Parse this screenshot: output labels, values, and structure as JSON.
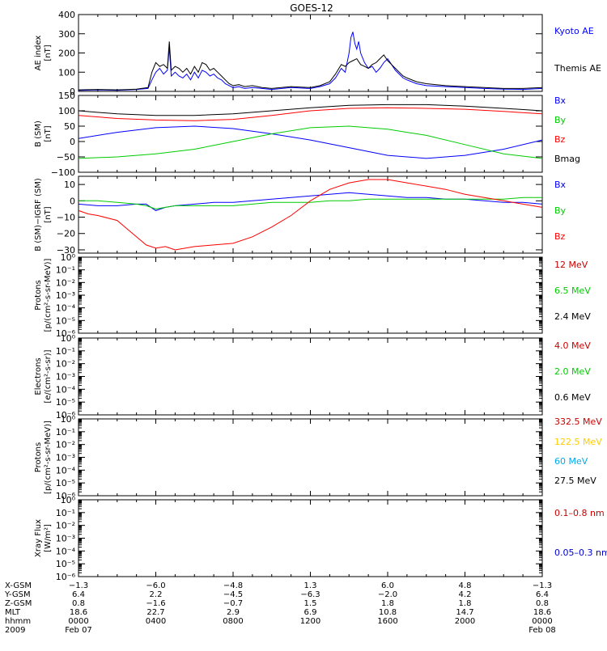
{
  "title": "GOES-12",
  "x_range_hours": [
    0,
    24
  ],
  "chart_data": [
    {
      "id": "ae",
      "type": "line",
      "ylabel": "AE index",
      "yunit": "[nT]",
      "yscale": "linear",
      "ylim": [
        0,
        400
      ],
      "yticks": [
        0,
        100,
        200,
        300,
        400
      ],
      "yticklabels": [
        "0",
        "100",
        "200",
        "300",
        "400"
      ],
      "series": [
        {
          "name": "Kyoto AE",
          "color": "#0000ff",
          "x": [
            0,
            1,
            2,
            3,
            3.6,
            3.8,
            4,
            4.2,
            4.4,
            4.6,
            4.7,
            4.8,
            5,
            5.2,
            5.4,
            5.6,
            5.8,
            6,
            6.2,
            6.4,
            6.6,
            6.8,
            7,
            7.2,
            7.4,
            7.6,
            7.8,
            8,
            8.3,
            8.6,
            9,
            9.5,
            10,
            11,
            12,
            12.5,
            13,
            13.3,
            13.6,
            13.8,
            14,
            14.1,
            14.2,
            14.3,
            14.4,
            14.5,
            14.6,
            14.8,
            15,
            15.2,
            15.4,
            15.6,
            15.8,
            16,
            16.2,
            16.4,
            16.6,
            16.8,
            17,
            17.5,
            18,
            19,
            20,
            21,
            22,
            23,
            24
          ],
          "values": [
            5,
            8,
            6,
            10,
            15,
            60,
            100,
            120,
            90,
            110,
            230,
            80,
            100,
            80,
            70,
            90,
            60,
            100,
            70,
            110,
            100,
            80,
            90,
            70,
            60,
            40,
            30,
            20,
            25,
            15,
            20,
            15,
            10,
            20,
            15,
            25,
            40,
            70,
            120,
            100,
            200,
            280,
            310,
            250,
            220,
            260,
            200,
            150,
            120,
            130,
            100,
            120,
            150,
            170,
            140,
            110,
            90,
            70,
            60,
            40,
            30,
            25,
            20,
            15,
            12,
            10,
            15
          ]
        },
        {
          "name": "Themis AE",
          "color": "#000000",
          "x": [
            0,
            1,
            2,
            3,
            3.6,
            3.8,
            4,
            4.2,
            4.4,
            4.6,
            4.7,
            4.8,
            5,
            5.2,
            5.4,
            5.6,
            5.8,
            6,
            6.2,
            6.4,
            6.6,
            6.8,
            7,
            7.2,
            7.4,
            7.6,
            7.8,
            8,
            8.3,
            8.6,
            9,
            9.5,
            10,
            11,
            12,
            12.5,
            13,
            13.3,
            13.6,
            13.8,
            14,
            14.2,
            14.4,
            14.6,
            14.8,
            15,
            15.2,
            15.4,
            15.6,
            15.8,
            16,
            16.2,
            16.4,
            16.6,
            16.8,
            17,
            17.5,
            18,
            19,
            20,
            21,
            22,
            23,
            24
          ],
          "values": [
            8,
            10,
            8,
            12,
            20,
            100,
            150,
            130,
            140,
            120,
            260,
            110,
            130,
            120,
            100,
            120,
            90,
            130,
            100,
            150,
            140,
            110,
            120,
            100,
            80,
            60,
            40,
            30,
            35,
            25,
            30,
            20,
            15,
            25,
            20,
            30,
            50,
            90,
            140,
            130,
            150,
            160,
            170,
            140,
            130,
            120,
            140,
            150,
            170,
            190,
            160,
            140,
            120,
            100,
            80,
            70,
            50,
            40,
            30,
            25,
            20,
            15,
            15,
            20
          ]
        }
      ]
    },
    {
      "id": "bsm",
      "type": "line",
      "ylabel": "B (SM)",
      "yunit": "[nT]",
      "yscale": "linear",
      "ylim": [
        -100,
        150
      ],
      "yticks": [
        -100,
        -50,
        0,
        50,
        100,
        150
      ],
      "yticklabels": [
        "−100",
        "−50",
        "0",
        "50",
        "100",
        "150"
      ],
      "series": [
        {
          "name": "Bx",
          "color": "#0000ff",
          "x": [
            0,
            2,
            4,
            6,
            8,
            10,
            12,
            14,
            16,
            18,
            20,
            22,
            24
          ],
          "values": [
            10,
            30,
            45,
            50,
            42,
            25,
            5,
            -20,
            -45,
            -55,
            -45,
            -25,
            5
          ]
        },
        {
          "name": "By",
          "color": "#00cc00",
          "x": [
            0,
            2,
            4,
            6,
            8,
            10,
            12,
            14,
            16,
            18,
            20,
            22,
            24
          ],
          "values": [
            -55,
            -50,
            -40,
            -25,
            0,
            25,
            45,
            50,
            40,
            20,
            -10,
            -40,
            -55
          ]
        },
        {
          "name": "Bz",
          "color": "#ff0000",
          "x": [
            0,
            2,
            4,
            6,
            8,
            10,
            12,
            14,
            16,
            18,
            20,
            22,
            24
          ],
          "values": [
            85,
            75,
            70,
            68,
            72,
            85,
            100,
            108,
            110,
            108,
            105,
            98,
            90
          ]
        },
        {
          "name": "Bmag",
          "color": "#000000",
          "x": [
            0,
            2,
            4,
            6,
            8,
            10,
            12,
            14,
            16,
            18,
            20,
            22,
            24
          ],
          "values": [
            100,
            90,
            85,
            85,
            90,
            100,
            110,
            118,
            120,
            120,
            115,
            108,
            100
          ]
        }
      ]
    },
    {
      "id": "bdiff",
      "type": "line",
      "ylabel": "B (SM)−IGRF (SM)",
      "yunit": "[nT]",
      "yscale": "linear",
      "ylim": [
        -32,
        15
      ],
      "yticks": [
        -30,
        -20,
        -10,
        0,
        10
      ],
      "yticklabels": [
        "−30",
        "−20",
        "−10",
        "0",
        "10"
      ],
      "series": [
        {
          "name": "Bx",
          "color": "#0000ff",
          "x": [
            0,
            1,
            2,
            3,
            3.5,
            4,
            4.5,
            5,
            6,
            7,
            8,
            9,
            10,
            11,
            12,
            13,
            14,
            15,
            16,
            17,
            18,
            19,
            20,
            21,
            22,
            23,
            24
          ],
          "values": [
            -2,
            -3,
            -3,
            -2,
            -2,
            -6,
            -4,
            -3,
            -2,
            -1,
            -1,
            0,
            1,
            2,
            3,
            4,
            5,
            4,
            3,
            2,
            2,
            1,
            1,
            0,
            -1,
            -1,
            -2
          ]
        },
        {
          "name": "By",
          "color": "#00cc00",
          "x": [
            0,
            1,
            2,
            3,
            3.5,
            4,
            4.5,
            5,
            6,
            7,
            8,
            9,
            10,
            11,
            12,
            13,
            14,
            15,
            16,
            17,
            18,
            19,
            20,
            21,
            22,
            23,
            24
          ],
          "values": [
            0,
            0,
            -1,
            -2,
            -3,
            -5,
            -4,
            -3,
            -3,
            -3,
            -3,
            -2,
            -1,
            -1,
            -1,
            0,
            0,
            1,
            1,
            1,
            1,
            1,
            1,
            1,
            1,
            2,
            2
          ]
        },
        {
          "name": "Bz",
          "color": "#ff0000",
          "x": [
            0,
            0.5,
            1,
            2,
            2.5,
            3,
            3.5,
            4,
            4.5,
            5,
            6,
            7,
            8,
            9,
            10,
            11,
            12,
            13,
            14,
            15,
            16,
            17,
            18,
            19,
            20,
            21,
            22,
            23,
            24
          ],
          "values": [
            -6,
            -8,
            -9,
            -12,
            -17,
            -22,
            -27,
            -29,
            -28,
            -30,
            -28,
            -27,
            -26,
            -22,
            -16,
            -9,
            0,
            7,
            11,
            13,
            13,
            11,
            9,
            7,
            4,
            2,
            0,
            -2,
            -4
          ]
        }
      ]
    },
    {
      "id": "protons1",
      "type": "line",
      "ylabel": "Protons",
      "yunit": "[p/(cm²-s-sr-MeV)]",
      "yscale": "log",
      "ylim": [
        1e-06,
        1
      ],
      "yticks": [
        1,
        0.1,
        0.01,
        0.001,
        0.0001,
        1e-05,
        1e-06
      ],
      "yticklabels": [
        "10⁰",
        "10⁻¹",
        "10⁻²",
        "10⁻³",
        "10⁻⁴",
        "10⁻⁵",
        "10⁻⁶"
      ],
      "series": [
        {
          "name": "12 MeV",
          "color": "#cc0000",
          "x": [],
          "values": []
        },
        {
          "name": "6.5 MeV",
          "color": "#00cc00",
          "x": [],
          "values": []
        },
        {
          "name": "2.4 MeV",
          "color": "#000000",
          "x": [],
          "values": []
        }
      ]
    },
    {
      "id": "electrons",
      "type": "line",
      "ylabel": "Electrons",
      "yunit": "[e/(cm²-s-sr)]",
      "yscale": "log",
      "ylim": [
        1e-06,
        1
      ],
      "yticks": [
        1,
        0.1,
        0.01,
        0.001,
        0.0001,
        1e-05,
        1e-06
      ],
      "yticklabels": [
        "10⁰",
        "10⁻¹",
        "10⁻²",
        "10⁻³",
        "10⁻⁴",
        "10⁻⁵",
        "10⁻⁶"
      ],
      "series": [
        {
          "name": "4.0 MeV",
          "color": "#cc0000",
          "x": [],
          "values": []
        },
        {
          "name": "2.0 MeV",
          "color": "#00cc00",
          "x": [],
          "values": []
        },
        {
          "name": "0.6 MeV",
          "color": "#000000",
          "x": [],
          "values": []
        }
      ]
    },
    {
      "id": "protons2",
      "type": "line",
      "ylabel": "Protons",
      "yunit": "[p/(cm²-s-sr-MeV)]",
      "yscale": "log",
      "ylim": [
        1e-06,
        1
      ],
      "yticks": [
        1,
        0.1,
        0.01,
        0.001,
        0.0001,
        1e-05,
        1e-06
      ],
      "yticklabels": [
        "10⁰",
        "10⁻¹",
        "10⁻²",
        "10⁻³",
        "10⁻⁴",
        "10⁻⁵",
        "10⁻⁶"
      ],
      "series": [
        {
          "name": "332.5 MeV",
          "color": "#cc0000",
          "x": [],
          "values": []
        },
        {
          "name": "122.5 MeV",
          "color": "#ffcc00",
          "x": [],
          "values": []
        },
        {
          "name": "60 MeV",
          "color": "#00aaee",
          "x": [],
          "values": []
        },
        {
          "name": "27.5 MeV",
          "color": "#000000",
          "x": [],
          "values": []
        }
      ]
    },
    {
      "id": "xray",
      "type": "line",
      "ylabel": "Xray Flux",
      "yunit": "[W/m²]",
      "yscale": "log",
      "ylim": [
        1e-06,
        1
      ],
      "yticks": [
        1,
        0.1,
        0.01,
        0.001,
        0.0001,
        1e-05,
        1e-06
      ],
      "yticklabels": [
        "10⁰",
        "10⁻¹",
        "10⁻²",
        "10⁻³",
        "10⁻⁴",
        "10⁻⁵",
        "10⁻⁶"
      ],
      "series": [
        {
          "name": "0.1–0.8 nm",
          "color": "#cc0000",
          "x": [],
          "values": []
        },
        {
          "name": "0.05–0.3 nm",
          "color": "#0000cc",
          "x": [],
          "values": []
        }
      ]
    }
  ],
  "orbit_table": {
    "x_positions_hours": [
      0,
      4,
      8,
      12,
      16,
      20,
      24
    ],
    "rows": [
      {
        "label": "X-GSM",
        "values": [
          "−1.3",
          "−6.0",
          "−4.8",
          "1.3",
          "6.0",
          "4.8",
          "−1.3"
        ]
      },
      {
        "label": "Y-GSM",
        "values": [
          "6.4",
          "2.2",
          "−4.5",
          "−6.3",
          "−2.0",
          "4.2",
          "6.4"
        ]
      },
      {
        "label": "Z-GSM",
        "values": [
          "0.8",
          "−1.6",
          "−0.7",
          "1.5",
          "1.8",
          "1.8",
          "0.8"
        ]
      },
      {
        "label": "MLT",
        "values": [
          "18.6",
          "22.7",
          "2.9",
          "6.9",
          "10.8",
          "14.7",
          "18.6"
        ]
      },
      {
        "label": "hhmm",
        "values": [
          "0000",
          "0400",
          "0800",
          "1200",
          "1600",
          "2000",
          "0000"
        ]
      }
    ],
    "year_label": "2009",
    "date_start": "Feb 07",
    "date_end": "Feb 08"
  }
}
